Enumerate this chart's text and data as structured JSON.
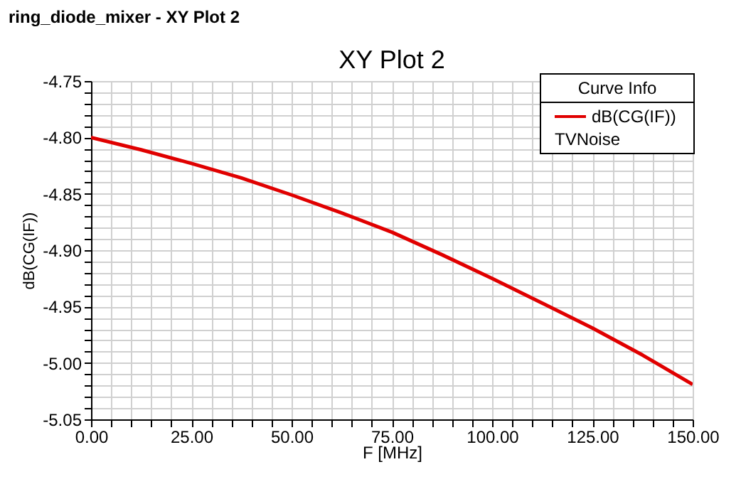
{
  "chart_data": {
    "type": "line",
    "title": "XY Plot 2",
    "xlabel": "F [MHz]",
    "ylabel": "dB(CG(IF))",
    "legend_title": "Curve Info",
    "annotations": [
      "ring_diode_mixer - XY Plot 2",
      "TVNoise"
    ],
    "x": [
      0,
      12.5,
      25,
      37.5,
      50,
      62.5,
      75,
      87.5,
      100,
      112.5,
      125,
      137.5,
      150
    ],
    "series": [
      {
        "name": "dB(CG(IF))",
        "color": "#e00000",
        "values": [
          -4.8,
          -4.811,
          -4.823,
          -4.836,
          -4.851,
          -4.867,
          -4.884,
          -4.904,
          -4.925,
          -4.947,
          -4.969,
          -4.993,
          -5.019
        ]
      }
    ],
    "xlim": [
      0,
      150
    ],
    "xticks": [
      {
        "value": 0,
        "label": "0.00"
      },
      {
        "value": 5,
        "label": null
      },
      {
        "value": 10,
        "label": null
      },
      {
        "value": 15,
        "label": null
      },
      {
        "value": 20,
        "label": null
      },
      {
        "value": 25,
        "label": "25.00"
      },
      {
        "value": 30,
        "label": null
      },
      {
        "value": 35,
        "label": null
      },
      {
        "value": 40,
        "label": null
      },
      {
        "value": 45,
        "label": null
      },
      {
        "value": 50,
        "label": "50.00"
      },
      {
        "value": 55,
        "label": null
      },
      {
        "value": 60,
        "label": null
      },
      {
        "value": 65,
        "label": null
      },
      {
        "value": 70,
        "label": null
      },
      {
        "value": 75,
        "label": "75.00"
      },
      {
        "value": 80,
        "label": null
      },
      {
        "value": 85,
        "label": null
      },
      {
        "value": 90,
        "label": null
      },
      {
        "value": 95,
        "label": null
      },
      {
        "value": 100,
        "label": "100.00"
      },
      {
        "value": 105,
        "label": null
      },
      {
        "value": 110,
        "label": null
      },
      {
        "value": 115,
        "label": null
      },
      {
        "value": 120,
        "label": null
      },
      {
        "value": 125,
        "label": "125.00"
      },
      {
        "value": 130,
        "label": null
      },
      {
        "value": 135,
        "label": null
      },
      {
        "value": 140,
        "label": null
      },
      {
        "value": 145,
        "label": null
      },
      {
        "value": 150,
        "label": "150.00"
      }
    ],
    "ylim": [
      -5.05,
      -4.75
    ],
    "yticks": [
      {
        "value": -5.05,
        "label": "-5.05"
      },
      {
        "value": -5.04,
        "label": null
      },
      {
        "value": -5.03,
        "label": null
      },
      {
        "value": -5.02,
        "label": null
      },
      {
        "value": -5.01,
        "label": null
      },
      {
        "value": -5.0,
        "label": "-5.00"
      },
      {
        "value": -4.99,
        "label": null
      },
      {
        "value": -4.98,
        "label": null
      },
      {
        "value": -4.97,
        "label": null
      },
      {
        "value": -4.96,
        "label": null
      },
      {
        "value": -4.95,
        "label": "-4.95"
      },
      {
        "value": -4.94,
        "label": null
      },
      {
        "value": -4.93,
        "label": null
      },
      {
        "value": -4.92,
        "label": null
      },
      {
        "value": -4.91,
        "label": null
      },
      {
        "value": -4.9,
        "label": "-4.90"
      },
      {
        "value": -4.89,
        "label": null
      },
      {
        "value": -4.88,
        "label": null
      },
      {
        "value": -4.87,
        "label": null
      },
      {
        "value": -4.86,
        "label": null
      },
      {
        "value": -4.85,
        "label": "-4.85"
      },
      {
        "value": -4.84,
        "label": null
      },
      {
        "value": -4.83,
        "label": null
      },
      {
        "value": -4.82,
        "label": null
      },
      {
        "value": -4.81,
        "label": null
      },
      {
        "value": -4.8,
        "label": "-4.80"
      },
      {
        "value": -4.79,
        "label": null
      },
      {
        "value": -4.78,
        "label": null
      },
      {
        "value": -4.77,
        "label": null
      },
      {
        "value": -4.76,
        "label": null
      },
      {
        "value": -4.75,
        "label": "-4.75"
      }
    ],
    "grid": true,
    "legend": "top right",
    "marker": "none",
    "line_style": "solid"
  }
}
